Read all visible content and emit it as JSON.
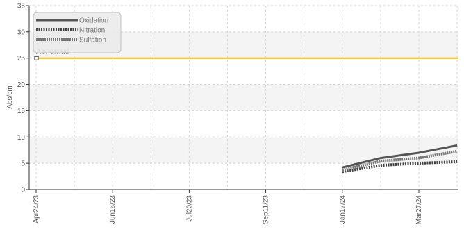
{
  "chart_data": {
    "type": "line",
    "title": "",
    "ylabel": "Abs/cm",
    "xlabel": "",
    "ylim": [
      0,
      35
    ],
    "yticks": [
      0,
      5,
      10,
      15,
      20,
      25,
      30,
      35
    ],
    "x_tick_labels": [
      "Apr24/23",
      "Jun16/23",
      "Jul20/23",
      "Sep11/23",
      "Jan17/24",
      "Mar27/24"
    ],
    "grid": true,
    "legend_position": "top-left",
    "series": [
      {
        "name": "Oxidation",
        "color": "#555555",
        "style": "solid",
        "x": [
          4.0,
          4.5,
          5.0,
          5.5
        ],
        "values": [
          4.2,
          6.0,
          7.0,
          8.4
        ]
      },
      {
        "name": "Nitration",
        "color": "#444444",
        "style": "dotted",
        "x": [
          4.0,
          4.5,
          5.0,
          5.5
        ],
        "values": [
          3.4,
          4.6,
          5.0,
          5.3
        ]
      },
      {
        "name": "Sulfation",
        "color": "#777777",
        "style": "dashed",
        "x": [
          4.0,
          4.5,
          5.0,
          5.5
        ],
        "values": [
          3.7,
          5.4,
          6.0,
          7.3
        ]
      }
    ],
    "threshold": {
      "label": "Abnormal",
      "value": 25,
      "color": "#f2b705"
    }
  }
}
